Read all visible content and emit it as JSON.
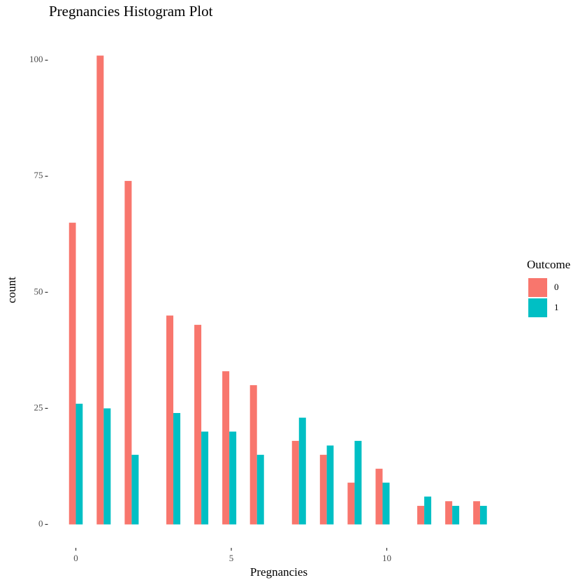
{
  "chart_data": {
    "type": "histogram",
    "title": "Pregnancies Histogram Plot",
    "x_label": "Pregnancies",
    "y_label": "count",
    "legend_title": "Outcome",
    "legend_position": "right",
    "grid": false,
    "bins": [
      -0.22,
      0.22,
      0.67,
      1.12,
      1.57,
      2.02,
      2.47,
      2.91,
      3.36,
      3.81,
      4.26,
      4.71,
      5.16,
      5.6,
      6.05,
      6.5,
      6.95,
      7.4,
      7.85,
      8.29,
      8.74,
      9.19,
      9.64,
      10.09,
      10.54,
      10.98,
      11.43,
      11.88,
      12.33,
      12.78,
      13.22
    ],
    "series": [
      {
        "name": "0",
        "color": "#F8766D",
        "values": [
          65,
          0,
          101,
          0,
          74,
          0,
          0,
          45,
          0,
          43,
          0,
          33,
          0,
          30,
          0,
          0,
          18,
          0,
          15,
          0,
          9,
          0,
          12,
          0,
          0,
          4,
          0,
          5,
          0,
          5
        ]
      },
      {
        "name": "1",
        "color": "#00BFC4",
        "values": [
          26,
          0,
          25,
          0,
          15,
          0,
          0,
          24,
          0,
          20,
          0,
          20,
          0,
          15,
          0,
          0,
          23,
          0,
          17,
          0,
          18,
          0,
          9,
          0,
          0,
          6,
          0,
          4,
          0,
          4
        ]
      }
    ],
    "xlim": [
      -0.9,
      13.9
    ],
    "ylim": [
      -5.05,
      106.05
    ],
    "xticks": [
      0,
      5,
      10
    ],
    "yticks": [
      0,
      25,
      50,
      75,
      100
    ]
  }
}
